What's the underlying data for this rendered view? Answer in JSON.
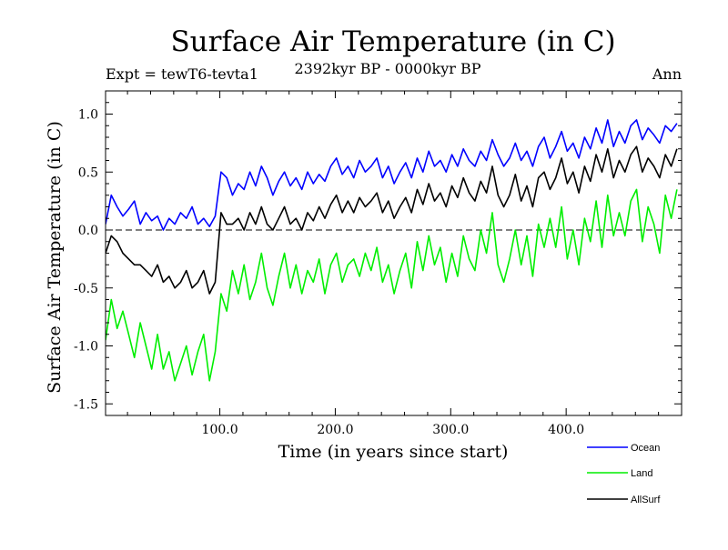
{
  "chart_data": {
    "type": "line",
    "title": "Surface Air Temperature (in C)",
    "subtitle_left": "Expt = tewT6-tevta1",
    "subtitle_center": "2392kyr BP - 0000kyr BP",
    "subtitle_right": "Ann",
    "xlabel": "Time (in years since start)",
    "ylabel": "Surface Air Temperature (in C)",
    "xlim": [
      1,
      500
    ],
    "ylim": [
      -1.6,
      1.2
    ],
    "x_ticks": [
      100,
      200,
      300,
      400
    ],
    "x_tick_labels": [
      "100.0",
      "200.0",
      "300.0",
      "400.0"
    ],
    "y_ticks": [
      1.0,
      0.5,
      0.0,
      -0.5,
      -1.0,
      -1.5
    ],
    "y_tick_labels": [
      "1.0",
      "0.5",
      "0.0",
      "-0.5",
      "-1.0",
      "-1.5"
    ],
    "reference_line": 0.0,
    "x_step": 5,
    "series": [
      {
        "name": "Ocean",
        "color": "#0000ff",
        "x_start": 1,
        "values": [
          0.05,
          0.3,
          0.2,
          0.12,
          0.18,
          0.25,
          0.05,
          0.15,
          0.08,
          0.12,
          0.0,
          0.1,
          0.05,
          0.15,
          0.1,
          0.2,
          0.05,
          0.1,
          0.03,
          0.12,
          0.5,
          0.45,
          0.3,
          0.4,
          0.35,
          0.5,
          0.38,
          0.55,
          0.45,
          0.3,
          0.42,
          0.5,
          0.38,
          0.45,
          0.35,
          0.5,
          0.4,
          0.48,
          0.42,
          0.55,
          0.62,
          0.48,
          0.55,
          0.45,
          0.6,
          0.5,
          0.55,
          0.62,
          0.45,
          0.55,
          0.4,
          0.5,
          0.58,
          0.45,
          0.62,
          0.5,
          0.68,
          0.55,
          0.6,
          0.5,
          0.65,
          0.55,
          0.7,
          0.6,
          0.55,
          0.68,
          0.6,
          0.78,
          0.65,
          0.55,
          0.62,
          0.75,
          0.6,
          0.68,
          0.55,
          0.72,
          0.8,
          0.62,
          0.72,
          0.85,
          0.68,
          0.75,
          0.62,
          0.8,
          0.7,
          0.88,
          0.75,
          0.95,
          0.72,
          0.85,
          0.75,
          0.9,
          0.95,
          0.78,
          0.88,
          0.82,
          0.75,
          0.9,
          0.85,
          0.92
        ]
      },
      {
        "name": "Land",
        "color": "#00ee00",
        "x_start": 1,
        "values": [
          -0.95,
          -0.6,
          -0.85,
          -0.7,
          -0.9,
          -1.1,
          -0.8,
          -1.0,
          -1.2,
          -0.9,
          -1.2,
          -1.05,
          -1.3,
          -1.15,
          -1.0,
          -1.25,
          -1.05,
          -0.9,
          -1.3,
          -1.05,
          -0.55,
          -0.7,
          -0.35,
          -0.55,
          -0.3,
          -0.6,
          -0.45,
          -0.2,
          -0.5,
          -0.65,
          -0.4,
          -0.2,
          -0.5,
          -0.3,
          -0.55,
          -0.35,
          -0.45,
          -0.25,
          -0.55,
          -0.3,
          -0.2,
          -0.45,
          -0.3,
          -0.25,
          -0.4,
          -0.2,
          -0.35,
          -0.15,
          -0.45,
          -0.3,
          -0.55,
          -0.35,
          -0.2,
          -0.5,
          -0.1,
          -0.35,
          -0.05,
          -0.3,
          -0.15,
          -0.45,
          -0.2,
          -0.4,
          -0.05,
          -0.25,
          -0.35,
          0.0,
          -0.2,
          0.15,
          -0.3,
          -0.45,
          -0.25,
          0.0,
          -0.3,
          -0.05,
          -0.4,
          0.05,
          -0.15,
          0.1,
          -0.15,
          0.2,
          -0.25,
          0.0,
          -0.3,
          0.1,
          -0.1,
          0.25,
          -0.15,
          0.3,
          -0.05,
          0.15,
          -0.05,
          0.25,
          0.35,
          -0.1,
          0.2,
          0.05,
          -0.2,
          0.3,
          0.1,
          0.35
        ]
      },
      {
        "name": "AllSurf",
        "color": "#000000",
        "x_start": 1,
        "values": [
          -0.2,
          -0.05,
          -0.1,
          -0.2,
          -0.25,
          -0.3,
          -0.3,
          -0.35,
          -0.4,
          -0.3,
          -0.45,
          -0.4,
          -0.5,
          -0.45,
          -0.35,
          -0.5,
          -0.45,
          -0.35,
          -0.55,
          -0.45,
          0.15,
          0.05,
          0.05,
          0.1,
          0.0,
          0.15,
          0.05,
          0.2,
          0.05,
          0.0,
          0.1,
          0.2,
          0.05,
          0.1,
          0.0,
          0.15,
          0.08,
          0.2,
          0.1,
          0.22,
          0.3,
          0.15,
          0.25,
          0.15,
          0.28,
          0.2,
          0.25,
          0.32,
          0.15,
          0.25,
          0.1,
          0.2,
          0.28,
          0.15,
          0.35,
          0.22,
          0.4,
          0.25,
          0.32,
          0.2,
          0.38,
          0.28,
          0.45,
          0.32,
          0.25,
          0.42,
          0.32,
          0.55,
          0.3,
          0.2,
          0.3,
          0.48,
          0.25,
          0.38,
          0.2,
          0.45,
          0.5,
          0.35,
          0.45,
          0.62,
          0.4,
          0.5,
          0.32,
          0.55,
          0.42,
          0.65,
          0.5,
          0.7,
          0.45,
          0.6,
          0.5,
          0.65,
          0.72,
          0.5,
          0.62,
          0.55,
          0.45,
          0.65,
          0.55,
          0.7
        ]
      }
    ]
  }
}
